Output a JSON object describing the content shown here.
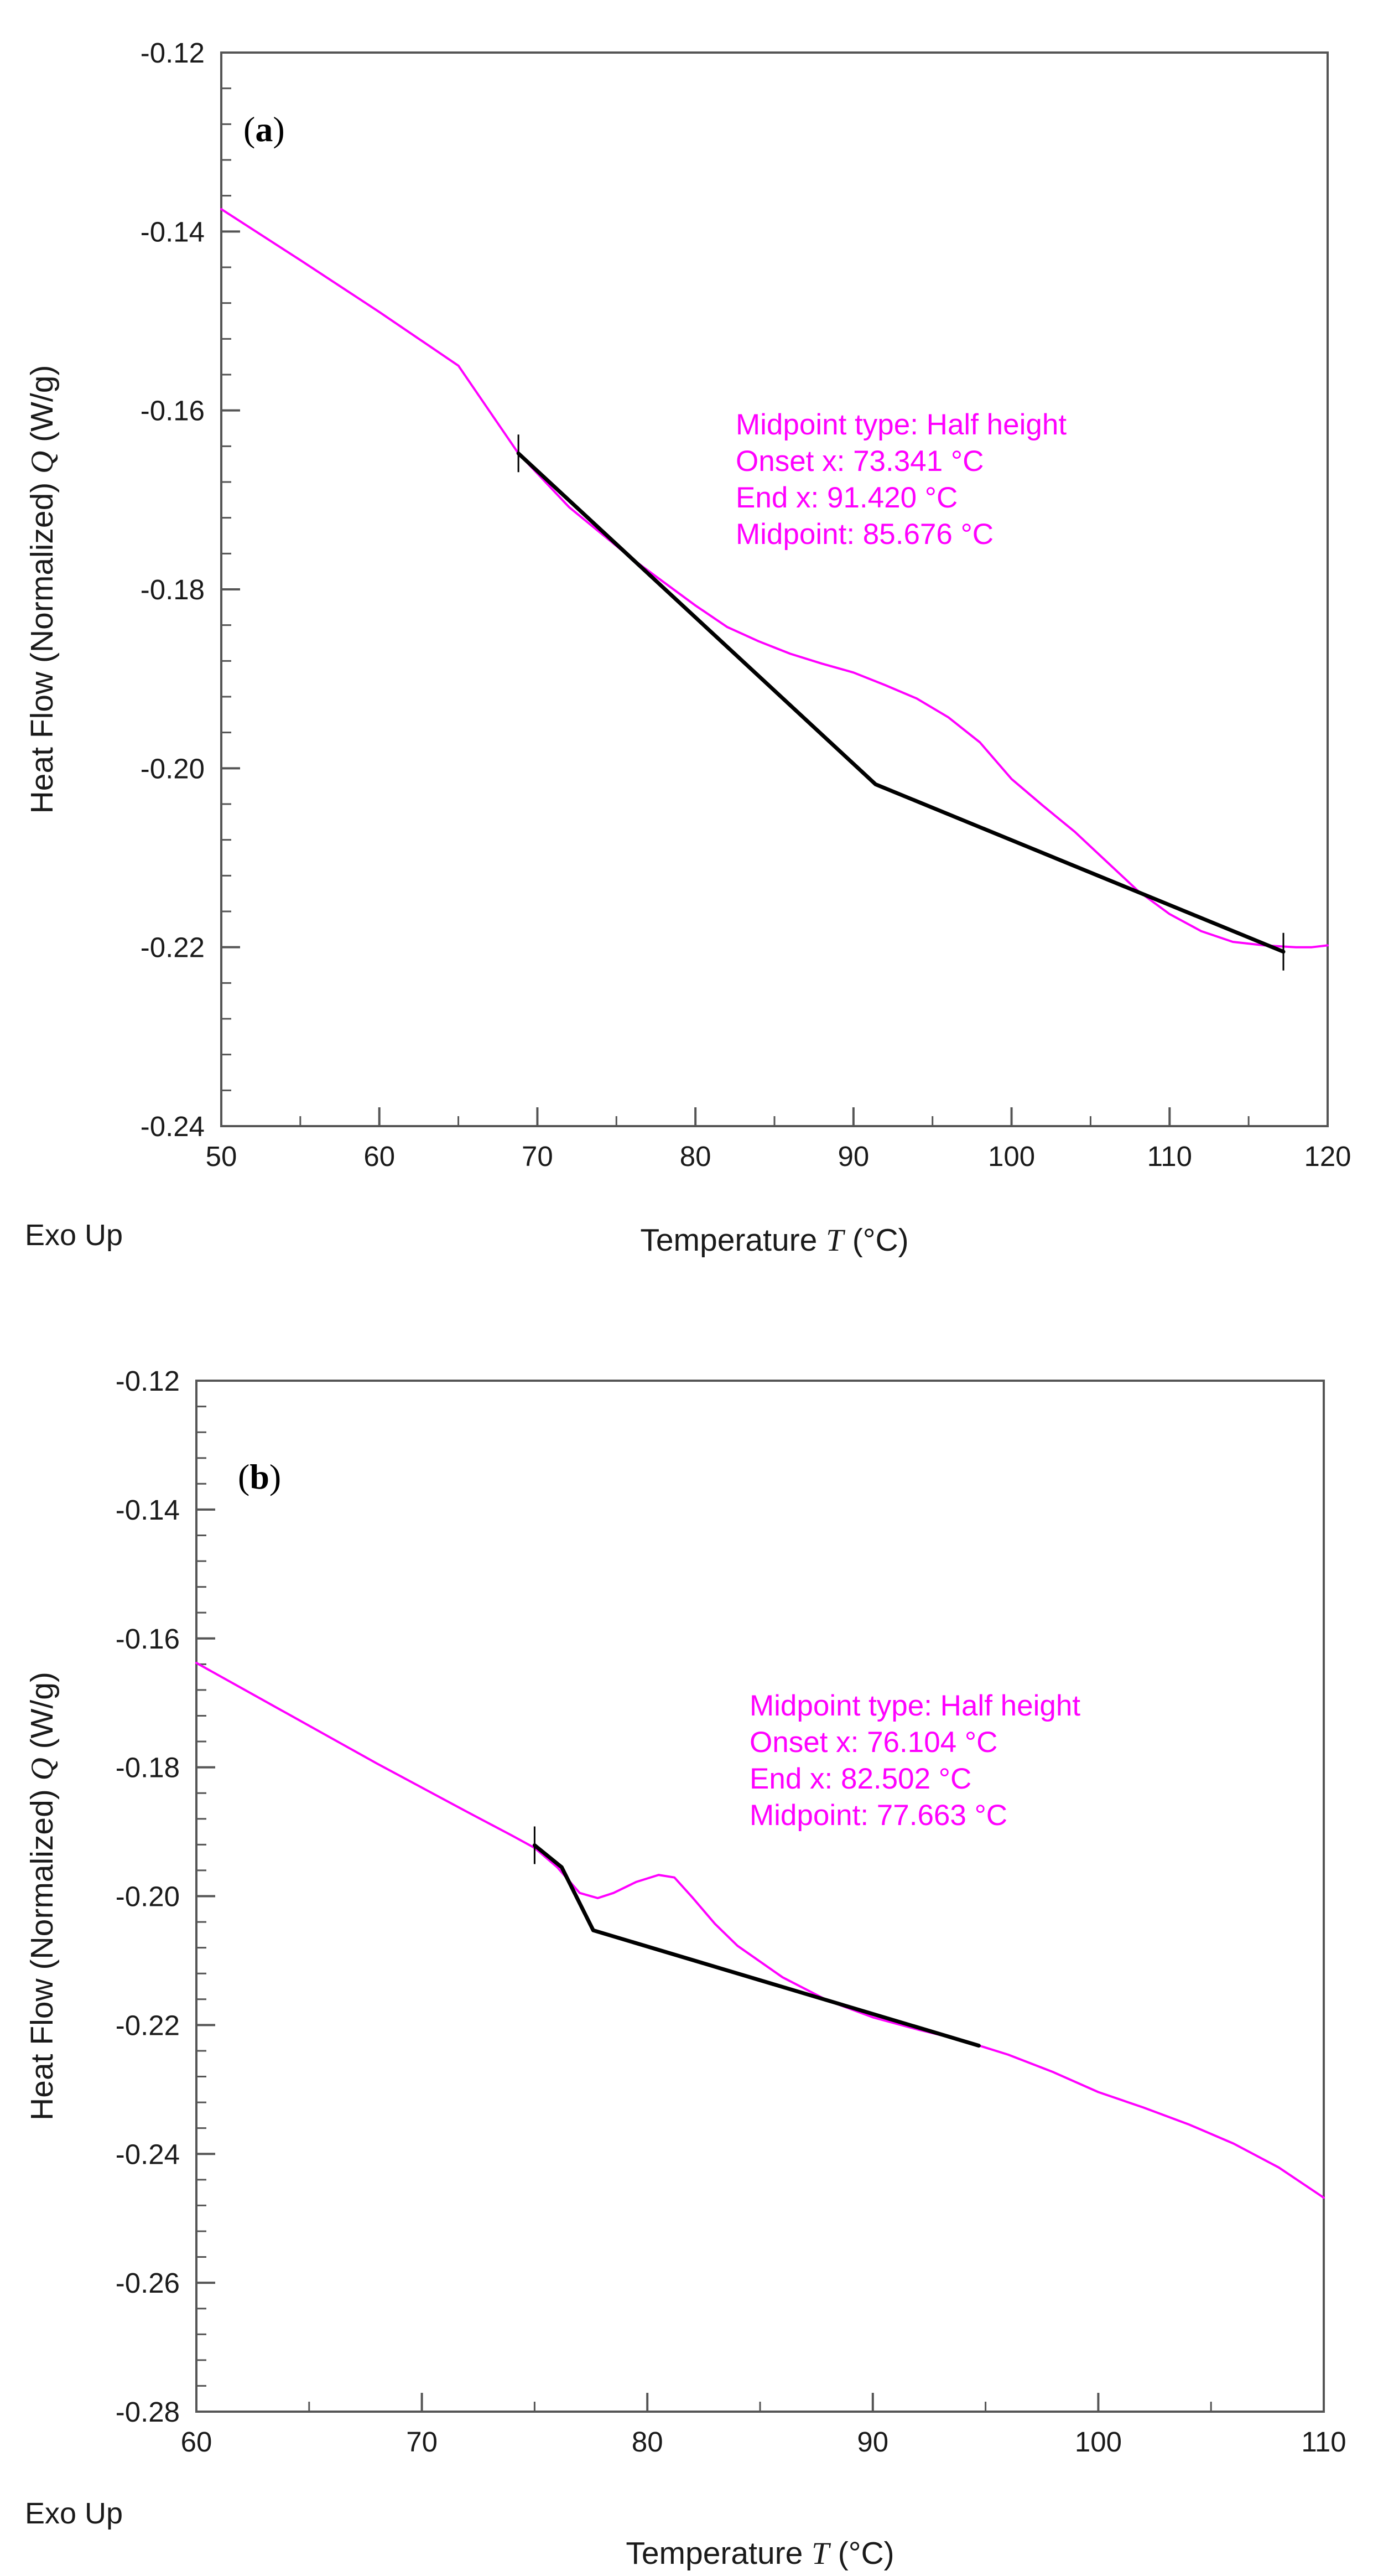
{
  "colors": {
    "curve": "#ff00ff",
    "baseline": "#000000",
    "frame": "#555555",
    "annotation": "#ff00ff"
  },
  "chart_data": [
    {
      "type": "line",
      "panel_label": "a",
      "xlabel": "Temperature",
      "xlabel_symbol": "T",
      "xlabel_unit": "(°C)",
      "ylabel": "Heat Flow (Normalized)",
      "ylabel_symbol": "Q",
      "ylabel_unit": "(W/g)",
      "corner_label": "Exo Up",
      "xlim": [
        50,
        120
      ],
      "ylim": [
        -0.24,
        -0.12
      ],
      "xticks": [
        "50",
        "60",
        "70",
        "80",
        "90",
        "100",
        "110",
        "120"
      ],
      "yticks": [
        "-0.24",
        "-0.22",
        "-0.20",
        "-0.18",
        "-0.16",
        "-0.14",
        "-0.12"
      ],
      "xminor": 5,
      "yminor": 0.004,
      "grid": false,
      "annotations": [
        "Midpoint type: Half height",
        "Onset x: 73.341 °C",
        "End x: 91.420 °C",
        "Midpoint: 85.676 °C"
      ],
      "series": [
        {
          "kind": "curve",
          "x": [
            50,
            55,
            60,
            65,
            68.8,
            72,
            76,
            78,
            80,
            82,
            84,
            86,
            88,
            90,
            92,
            94,
            96,
            98,
            100,
            102,
            104,
            106,
            108,
            110,
            112,
            114,
            116,
            117,
            118,
            119,
            120
          ],
          "y": [
            -0.1375,
            -0.1432,
            -0.149,
            -0.155,
            -0.1648,
            -0.1708,
            -0.1766,
            -0.1792,
            -0.1818,
            -0.1842,
            -0.1858,
            -0.1872,
            -0.1883,
            -0.1893,
            -0.1907,
            -0.1922,
            -0.1943,
            -0.1971,
            -0.2012,
            -0.2042,
            -0.2071,
            -0.2104,
            -0.2137,
            -0.2163,
            -0.2182,
            -0.2194,
            -0.2198,
            -0.2199,
            -0.22,
            -0.22,
            -0.2198
          ]
        },
        {
          "kind": "baseline",
          "x": [
            68.8,
            91.4,
            117.2
          ],
          "y": [
            -0.1648,
            -0.2018,
            -0.2205
          ]
        }
      ],
      "markers": [
        {
          "x": 68.8,
          "y": -0.1648
        },
        {
          "x": 117.2,
          "y": -0.2205
        }
      ]
    },
    {
      "type": "line",
      "panel_label": "b",
      "xlabel": "Temperature",
      "xlabel_symbol": "T",
      "xlabel_unit": "(°C)",
      "ylabel": "Heat Flow (Normalized)",
      "ylabel_symbol": "Q",
      "ylabel_unit": "(W/g)",
      "corner_label": "Exo Up",
      "xlim": [
        60,
        110
      ],
      "ylim": [
        -0.28,
        -0.12
      ],
      "xticks": [
        "60",
        "70",
        "80",
        "90",
        "100",
        "110"
      ],
      "yticks": [
        "-0.28",
        "-0.26",
        "-0.24",
        "-0.22",
        "-0.20",
        "-0.18",
        "-0.16",
        "-0.14",
        "-0.12"
      ],
      "xminor": 5,
      "yminor": 0.004,
      "grid": false,
      "annotations": [
        "Midpoint type: Half height",
        "Onset x: 76.104 °C",
        "End x: 82.502 °C",
        "Midpoint: 77.663 °C"
      ],
      "series": [
        {
          "kind": "curve",
          "x": [
            60,
            64,
            68,
            72,
            74,
            75,
            76,
            77,
            77.8,
            78.5,
            79.5,
            80.5,
            81.2,
            82,
            83,
            84,
            86,
            88,
            90,
            92,
            94,
            96,
            98,
            100,
            102,
            104,
            106,
            108,
            110
          ],
          "y": [
            -0.1638,
            -0.1716,
            -0.1794,
            -0.1869,
            -0.1906,
            -0.1925,
            -0.1955,
            -0.1995,
            -0.2003,
            -0.1995,
            -0.1978,
            -0.1967,
            -0.1971,
            -0.2002,
            -0.2043,
            -0.2077,
            -0.2126,
            -0.2162,
            -0.2188,
            -0.2207,
            -0.2224,
            -0.2246,
            -0.2273,
            -0.2304,
            -0.2328,
            -0.2354,
            -0.2384,
            -0.2421,
            -0.2468
          ]
        },
        {
          "kind": "baseline",
          "x": [
            75,
            76.2,
            77.6,
            94.7
          ],
          "y": [
            -0.1921,
            -0.1955,
            -0.2053,
            -0.2232
          ]
        }
      ],
      "markers": [
        {
          "x": 75,
          "y": -0.1921
        }
      ]
    }
  ]
}
